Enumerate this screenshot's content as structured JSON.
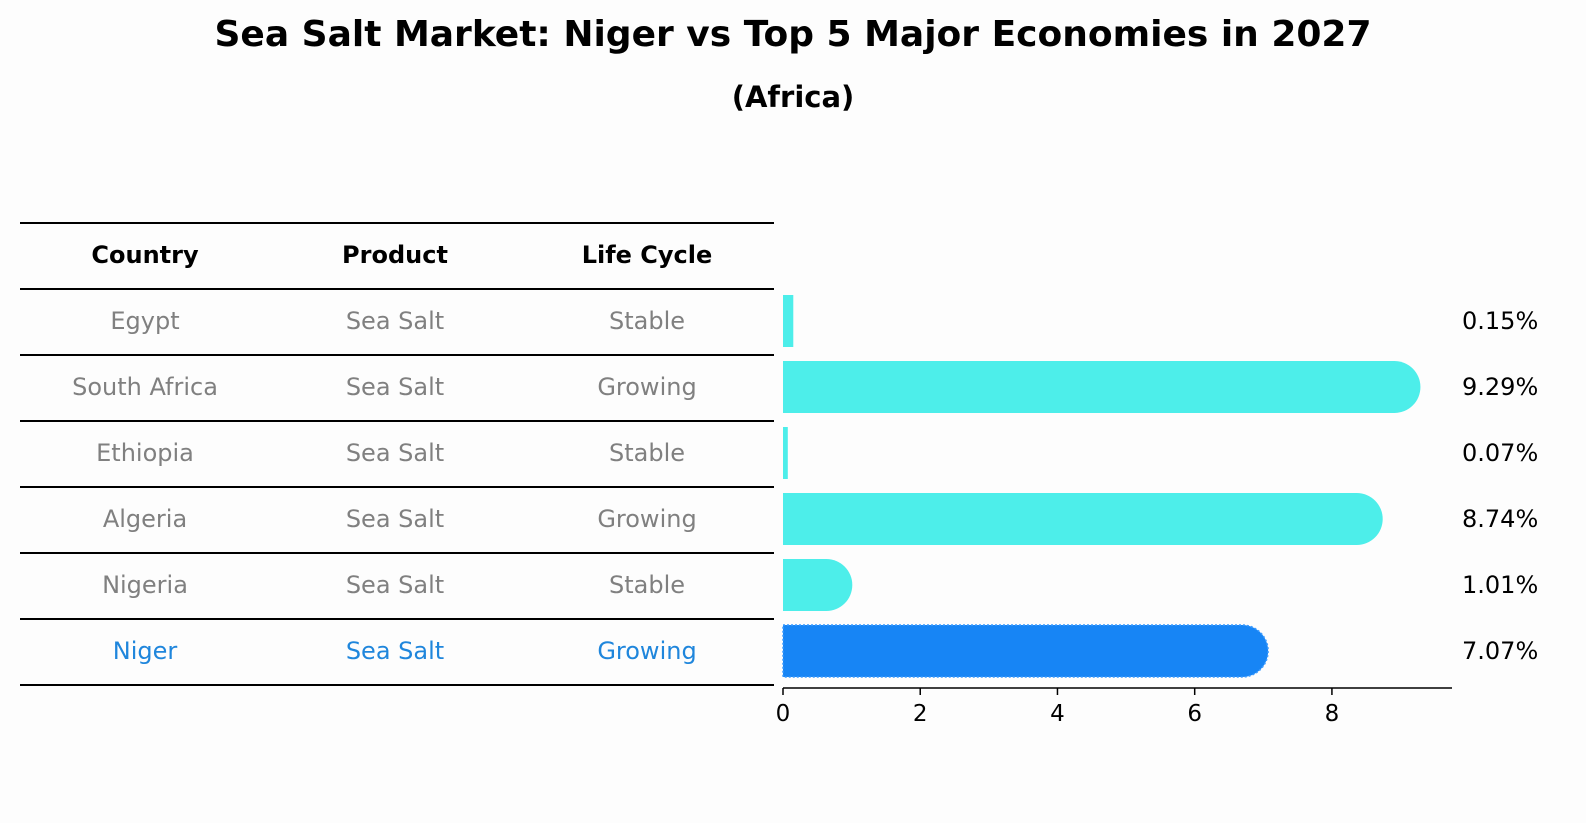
{
  "title": "Sea Salt Market: Niger vs Top 5 Major Economies in 2027",
  "subtitle": "(Africa)",
  "table": {
    "headers": [
      "Country",
      "Product",
      "Life Cycle"
    ],
    "rows": [
      [
        "Egypt",
        "Sea Salt",
        "Stable"
      ],
      [
        "South Africa",
        "Sea Salt",
        "Growing"
      ],
      [
        "Ethiopia",
        "Sea Salt",
        "Stable"
      ],
      [
        "Algeria",
        "Sea Salt",
        "Growing"
      ],
      [
        "Nigeria",
        "Sea Salt",
        "Stable"
      ],
      [
        "Niger",
        "Sea Salt",
        "Growing"
      ]
    ],
    "highlight_row": 5,
    "colors": {
      "text": "#808080",
      "highlight": "#1f86dc",
      "header": "#000000"
    }
  },
  "chart_data": {
    "type": "bar",
    "orientation": "horizontal",
    "categories": [
      "Egypt",
      "South Africa",
      "Ethiopia",
      "Algeria",
      "Nigeria",
      "Niger"
    ],
    "values": [
      0.15,
      9.29,
      0.07,
      8.74,
      1.01,
      7.07
    ],
    "value_labels": [
      "0.15%",
      "9.29%",
      "0.07%",
      "8.74%",
      "1.01%",
      "7.07%"
    ],
    "xticks": [
      0,
      2,
      4,
      6,
      8
    ],
    "xlim": [
      0,
      9.75
    ],
    "highlight": "Niger",
    "colors": {
      "bar": "#4deeea",
      "highlight": "#1785f5"
    },
    "grid": false
  }
}
